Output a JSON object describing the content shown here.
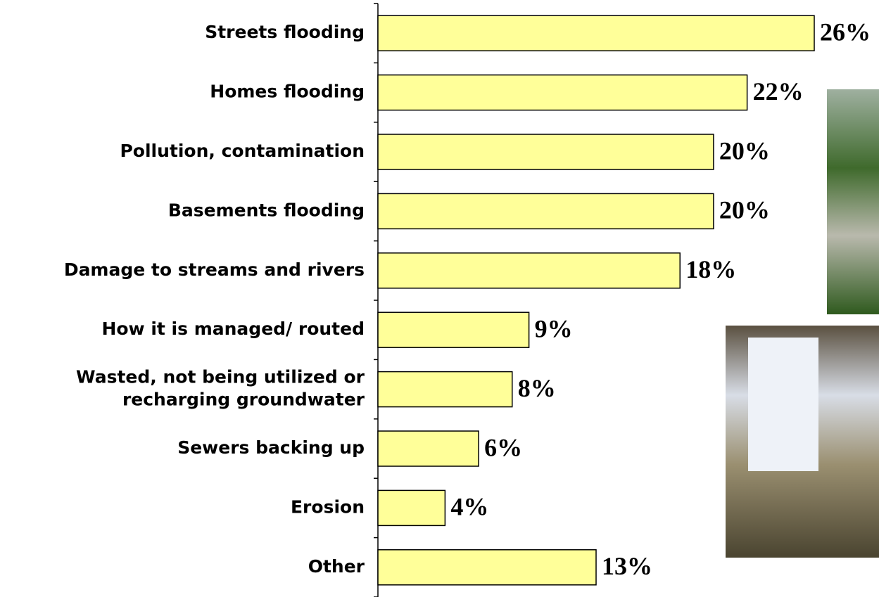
{
  "chart_data": {
    "type": "bar",
    "orientation": "horizontal",
    "categories": [
      "Streets flooding",
      "Homes flooding",
      "Pollution, contamination",
      "Basements flooding",
      "Damage to streams and rivers",
      "How it is managed/ routed",
      "Wasted, not being utilized or\nrecharging groundwater",
      "Sewers backing up",
      "Erosion",
      "Other"
    ],
    "values": [
      26,
      22,
      20,
      20,
      18,
      9,
      8,
      6,
      4,
      13
    ],
    "value_labels": [
      "26%",
      "22%",
      "20%",
      "20%",
      "18%",
      "9%",
      "8%",
      "6%",
      "4%",
      "13%"
    ],
    "color": "#ffff99"
  }
}
